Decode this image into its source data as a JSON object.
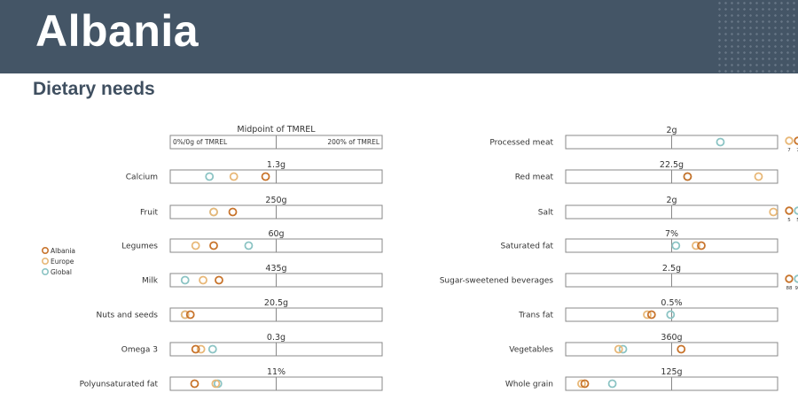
{
  "header": {
    "country": "Albania",
    "section": "Dietary needs"
  },
  "colors": {
    "header_bg": "#445566",
    "Albania": "#c8742c",
    "Europe": "#e8b878",
    "Global": "#8cc4c4",
    "box": "#888888"
  },
  "legend": {
    "items": [
      "Albania",
      "Europe",
      "Global"
    ]
  },
  "scale": {
    "title": "Midpoint of TMREL",
    "left_label": "0%/0g of TMREL",
    "right_label": "200% of TMREL"
  },
  "chart_data": {
    "type": "scatter",
    "x_unit": "percent of TMREL midpoint",
    "xlim": [
      0,
      200
    ],
    "series_names": [
      "Albania",
      "Europe",
      "Global"
    ],
    "panels": [
      {
        "name": "Calcium",
        "target": "1.3g",
        "values": {
          "Albania": 90,
          "Europe": 60,
          "Global": 37
        }
      },
      {
        "name": "Fruit",
        "target": "250g",
        "values": {
          "Albania": 59,
          "Europe": 41,
          "Global": 41
        }
      },
      {
        "name": "Legumes",
        "target": "60g",
        "values": {
          "Albania": 41,
          "Europe": 24,
          "Global": 74
        }
      },
      {
        "name": "Milk",
        "target": "435g",
        "values": {
          "Albania": 46,
          "Europe": 31,
          "Global": 14
        }
      },
      {
        "name": "Nuts and seeds",
        "target": "20.5g",
        "values": {
          "Albania": 19,
          "Europe": 14,
          "Global": 14
        }
      },
      {
        "name": "Omega 3",
        "target": "0.3g",
        "values": {
          "Albania": 24,
          "Europe": 29,
          "Global": 40
        }
      },
      {
        "name": "Polyunsaturated fat",
        "target": "11%",
        "values": {
          "Albania": 23,
          "Europe": 43,
          "Global": 45
        }
      },
      {
        "name": "Processed meat",
        "target": "2g",
        "values": {
          "Albania": null,
          "Europe": null,
          "Global": 146
        },
        "overflow": {
          "Europe": "7",
          "Albania": "7"
        }
      },
      {
        "name": "Red meat",
        "target": "22.5g",
        "values": {
          "Albania": 115,
          "Europe": 182,
          "Global": 115
        }
      },
      {
        "name": "Salt",
        "target": "2g",
        "values": {
          "Albania": null,
          "Europe": 196,
          "Global": null
        },
        "overflow": {
          "Albania": "5",
          "Global": "5"
        }
      },
      {
        "name": "Saturated fat",
        "target": "7%",
        "values": {
          "Albania": 128,
          "Europe": 123,
          "Global": 104
        }
      },
      {
        "name": "Sugar-sweetened beverages",
        "target": "2.5g",
        "values": {
          "Albania": null,
          "Europe": null,
          "Global": null
        },
        "overflow": {
          "Albania": "88",
          "Global": "93",
          "Europe": "98"
        }
      },
      {
        "name": "Trans fat",
        "target": "0.5%",
        "values": {
          "Albania": 81,
          "Europe": 77,
          "Global": 99
        }
      },
      {
        "name": "Vegetables",
        "target": "360g",
        "values": {
          "Albania": 109,
          "Europe": 50,
          "Global": 54
        }
      },
      {
        "name": "Whole grain",
        "target": "125g",
        "values": {
          "Albania": 18,
          "Europe": 15,
          "Global": 44
        }
      }
    ]
  }
}
